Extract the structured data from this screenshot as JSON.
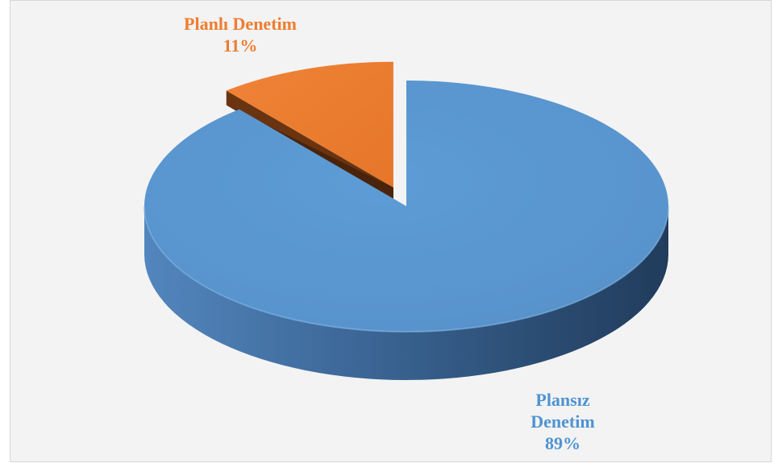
{
  "chart_data": {
    "type": "pie",
    "title": "",
    "slices": [
      {
        "name": "Plansız Denetim",
        "label_lines": [
          "Plansız",
          "Denetim"
        ],
        "percent_label": "89%",
        "value": 89,
        "color": "#5b9bd5"
      },
      {
        "name": "Planlı Denetim",
        "label_lines": [
          "Planlı Denetim"
        ],
        "percent_label": "11%",
        "value": 11,
        "color": "#ed7d31"
      }
    ],
    "style": "3d",
    "exploded": "Planlı Denetim",
    "legend": "none"
  }
}
